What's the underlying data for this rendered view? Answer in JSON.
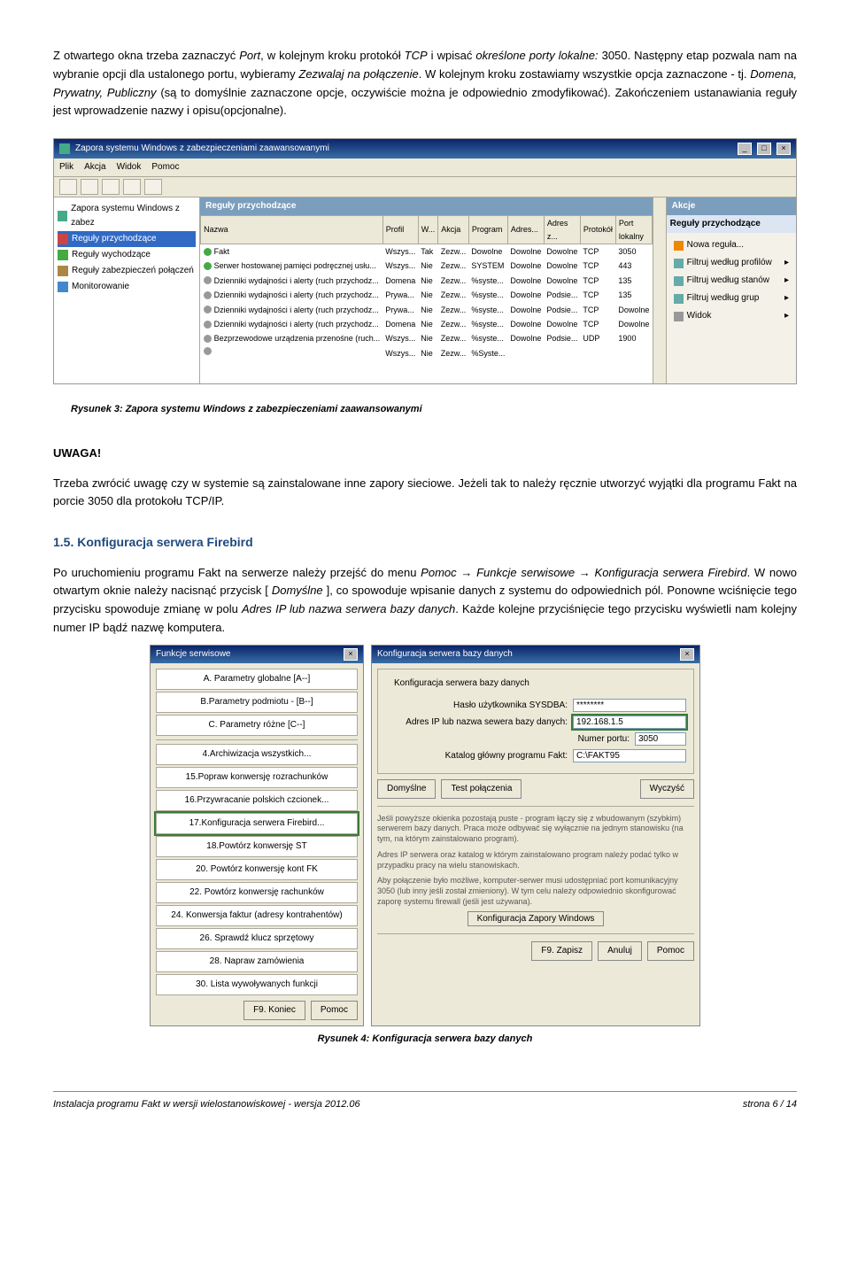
{
  "para1_pre": "Z otwartego okna trzeba zaznaczyć ",
  "para1_port": "Port",
  "para1_mid1": ", w kolejnym kroku protokół ",
  "para1_tcp": "TCP",
  "para1_mid2": " i wpisać ",
  "para1_porty": "określone porty lokalne:",
  "para1_num": " 3050. Następny etap pozwala nam na wybranie opcji dla ustalonego portu, wybieramy ",
  "para1_zez": "Zezwalaj na połączenie",
  "para1_mid3": ". W kolejnym kroku zostawiamy wszystkie opcja zaznaczone - tj. ",
  "para1_dpp": "Domena, Prywatny, Publiczny",
  "para1_end": " (są to domyślnie zaznaczone opcje, oczywiście można je odpowiednio zmodyfikować). Zakończeniem ustanawiania reguły jest wprowadzenie nazwy i opisu(opcjonalne).",
  "fw": {
    "title": "Zapora systemu Windows z zabezpieczeniami zaawansowanymi",
    "menu": [
      "Plik",
      "Akcja",
      "Widok",
      "Pomoc"
    ],
    "tree": [
      {
        "label": "Zapora systemu Windows z zabez",
        "ico": "ico-shield"
      },
      {
        "label": "Reguły przychodzące",
        "ico": "ico-in",
        "sel": true
      },
      {
        "label": "Reguły wychodzące",
        "ico": "ico-out"
      },
      {
        "label": "Reguły zabezpieczeń połączeń",
        "ico": "ico-lock"
      },
      {
        "label": "Monitorowanie",
        "ico": "ico-mon"
      }
    ],
    "rulesHeader": "Reguły przychodzące",
    "columns": [
      "Nazwa",
      "Profil",
      "W...",
      "Akcja",
      "Program",
      "Adres...",
      "Adres z...",
      "Protokół",
      "Port lokalny"
    ],
    "rows": [
      {
        "dot": "green",
        "name": "Fakt",
        "profil": "Wszys...",
        "w": "Tak",
        "akcja": "Zezw...",
        "prog": "Dowolne",
        "adres": "Dowolne",
        "adresz": "Dowolne",
        "proto": "TCP",
        "port": "3050"
      },
      {
        "dot": "green",
        "name": "Serwer hostowanej pamięci podręcznej usłu...",
        "profil": "Wszys...",
        "w": "Nie",
        "akcja": "Zezw...",
        "prog": "SYSTEM",
        "adres": "Dowolne",
        "adresz": "Dowolne",
        "proto": "TCP",
        "port": "443"
      },
      {
        "dot": "grey",
        "name": "Dzienniki wydajności i alerty (ruch przychodz...",
        "profil": "Domena",
        "w": "Nie",
        "akcja": "Zezw...",
        "prog": "%syste...",
        "adres": "Dowolne",
        "adresz": "Dowolne",
        "proto": "TCP",
        "port": "135"
      },
      {
        "dot": "grey",
        "name": "Dzienniki wydajności i alerty (ruch przychodz...",
        "profil": "Prywa...",
        "w": "Nie",
        "akcja": "Zezw...",
        "prog": "%syste...",
        "adres": "Dowolne",
        "adresz": "Podsie...",
        "proto": "TCP",
        "port": "135"
      },
      {
        "dot": "grey",
        "name": "Dzienniki wydajności i alerty (ruch przychodz...",
        "profil": "Prywa...",
        "w": "Nie",
        "akcja": "Zezw...",
        "prog": "%syste...",
        "adres": "Dowolne",
        "adresz": "Podsie...",
        "proto": "TCP",
        "port": "Dowolne"
      },
      {
        "dot": "grey",
        "name": "Dzienniki wydajności i alerty (ruch przychodz...",
        "profil": "Domena",
        "w": "Nie",
        "akcja": "Zezw...",
        "prog": "%syste...",
        "adres": "Dowolne",
        "adresz": "Dowolne",
        "proto": "TCP",
        "port": "Dowolne"
      },
      {
        "dot": "grey",
        "name": "Bezprzewodowe urządzenia przenośne (ruch...",
        "profil": "Wszys...",
        "w": "Nie",
        "akcja": "Zezw...",
        "prog": "%syste...",
        "adres": "Dowolne",
        "adresz": "Podsie...",
        "proto": "UDP",
        "port": "1900"
      },
      {
        "dot": "grey",
        "name": "",
        "profil": "Wszys...",
        "w": "Nie",
        "akcja": "Zezw...",
        "prog": "%Syste...",
        "adres": "",
        "adresz": "",
        "proto": "",
        "port": ""
      }
    ],
    "actionsHeader": "Akcje",
    "actionsSub": "Reguły przychodzące",
    "actions": [
      {
        "ico": "mi-new",
        "label": "Nowa reguła..."
      },
      {
        "ico": "mi-filter",
        "label": "Filtruj według profilów",
        "arrow": true
      },
      {
        "ico": "mi-filter",
        "label": "Filtruj według stanów",
        "arrow": true
      },
      {
        "ico": "mi-filter",
        "label": "Filtruj według grup",
        "arrow": true
      },
      {
        "ico": "mi-view",
        "label": "Widok",
        "arrow": true
      }
    ]
  },
  "caption1": "Rysunek 3: Zapora systemu Windows z zabezpieczeniami zaawansowanymi",
  "uwaga": "UWAGA!",
  "para2a": "Trzeba zwrócić uwagę czy w systemie są zainstalowane inne zapory sieciowe. Jeżeli tak to należy ręcznie utworzyć wyjątki dla programu Fakt na porcie 3050 dla protokołu TCP/IP.",
  "heading": "1.5.    Konfiguracja serwera Firebird",
  "para3_a": "Po uruchomieniu programu Fakt na serwerze należy przejść do menu ",
  "para3_i1": "Pomoc → Funkcje serwisowe → Konfiguracja serwera Firebird",
  "para3_b": ". W nowo otwartym oknie należy nacisnąć przycisk [ ",
  "para3_i2": "Domyślne",
  "para3_c": " ], co spowoduje wpisanie danych z systemu do odpowiednich pól. Ponowne wciśnięcie tego przycisku spowoduje zmianę w polu ",
  "para3_i3": "Adres IP lub nazwa serwera bazy danych",
  "para3_d": ". Każde kolejne przyciśnięcie tego przycisku wyświetli nam kolejny numer IP bądź nazwę komputera.",
  "dlg1": {
    "title": "Funkcje serwisowe",
    "items": [
      "A. Parametry globalne [A--]",
      "B.Parametry podmiotu - [B--]",
      "C. Parametry różne [C--]",
      "",
      "4.Archiwizacja wszystkich...",
      "15.Popraw konwersję rozrachunków",
      "16.Przywracanie polskich czcionek...",
      "17.Konfiguracja serwera Firebird...",
      "18.Powtórz konwersję ST",
      "20. Powtórz konwersję kont FK",
      "22. Powtórz konwersję rachunków",
      "24. Konwersja faktur (adresy kontrahentów)",
      "26. Sprawdź klucz sprzętowy",
      "28. Napraw zamówienia",
      "30. Lista wywoływanych funkcji"
    ],
    "selected": 7,
    "btnEnd": "F9. Koniec",
    "btnHelp": "Pomoc"
  },
  "dlg2": {
    "title": "Konfiguracja serwera bazy danych",
    "groupTitle": "Konfiguracja serwera bazy danych",
    "lblPass": "Hasło użytkownika SYSDBA:",
    "pass": "********",
    "lblIp": "Adres IP lub nazwa sewera bazy danych:",
    "ip": "192.168.1.5",
    "lblPort": "Numer portu:",
    "port": "3050",
    "lblKat": "Katalog główny programu Fakt:",
    "kat": "C:\\FAKT95",
    "btnDef": "Domyślne",
    "btnTest": "Test połączenia",
    "btnClear": "Wyczyść",
    "note1": "Jeśli powyższe okienka pozostają puste - program łączy się z wbudowanym (szybkim) serwerem bazy danych. Praca może odbywać się wyłącznie na jednym stanowisku (na tym, na którym zainstalowano program).",
    "note2": "Adres IP serwera oraz katalog w którym zainstalowano program należy podać tylko w przypadku pracy na wielu stanowiskach.",
    "note3": "Aby połączenie było możliwe, komputer-serwer musi udostępniać port komunikacyjny 3050 (lub inny jeśli został zmieniony). W tym celu należy odpowiednio skonfigurować zaporę systemu firewall (jeśli jest używana).",
    "btnFw": "Konfiguracja Zapory Windows",
    "btnSave": "F9. Zapisz",
    "btnCancel": "Anuluj",
    "btnHelp": "Pomoc"
  },
  "caption2": "Rysunek 4: Konfiguracja serwera bazy danych",
  "footerL": "Instalacja programu Fakt w wersji wielostanowiskowej - wersja 2012.06",
  "footerR": "strona 6 / 14"
}
